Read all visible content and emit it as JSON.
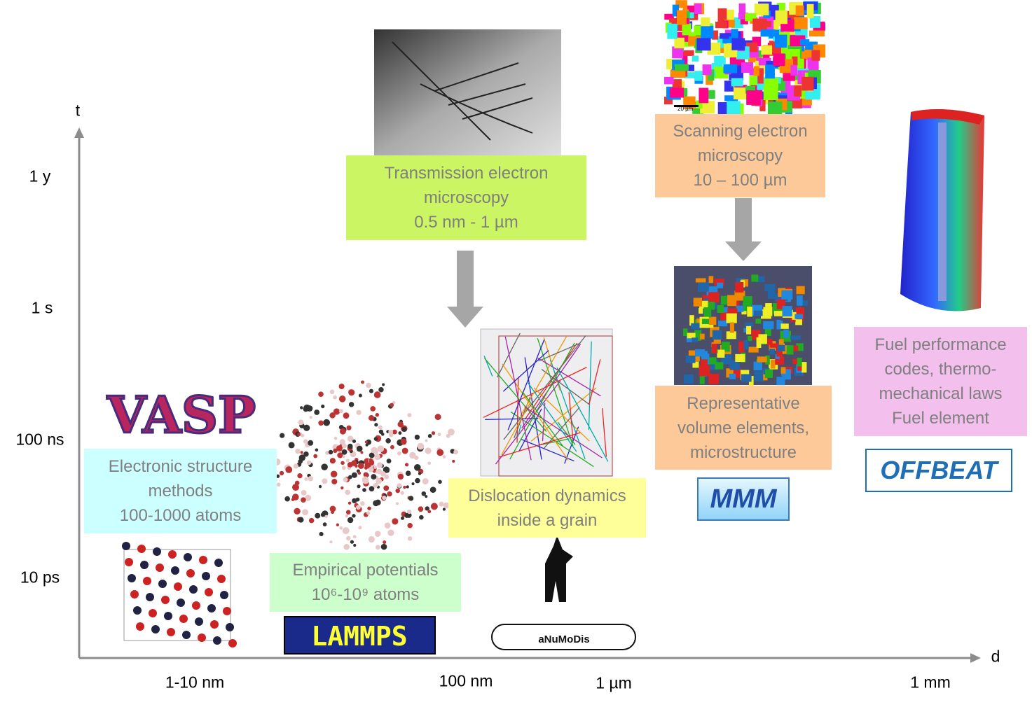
{
  "axes": {
    "y_label": "t",
    "x_label": "d",
    "y_ticks": [
      "1 y",
      "1 s",
      "100 ns",
      "10 ps"
    ],
    "x_ticks": [
      "1-10 nm",
      "100 nm",
      "1 µm",
      "1 mm"
    ]
  },
  "boxes": [
    {
      "lines": [
        "Transmission electron",
        "microscopy",
        "0.5 nm - 1 µm"
      ]
    },
    {
      "lines": [
        "Scanning electron",
        "microscopy",
        "10 – 100 µm"
      ]
    },
    {
      "lines": [
        "Electronic structure",
        "methods",
        "100-1000 atoms"
      ]
    },
    {
      "lines": [
        "Empirical potentials",
        "10⁶-10⁹ atoms"
      ]
    },
    {
      "lines": [
        "Dislocation dynamics",
        "inside a grain"
      ]
    },
    {
      "lines": [
        "Representative",
        "volume elements,",
        "microstructure"
      ]
    },
    {
      "lines": [
        "Fuel performance",
        "codes, thermo-",
        "mechanical laws",
        "Fuel element"
      ]
    }
  ],
  "logos": {
    "vasp": "VASP",
    "lammps": "LAMMPS",
    "anumodis": "aNuMoDis",
    "mmm": "MMM",
    "offbeat": "OFFBEAT"
  },
  "scale_bar": "20 µm"
}
